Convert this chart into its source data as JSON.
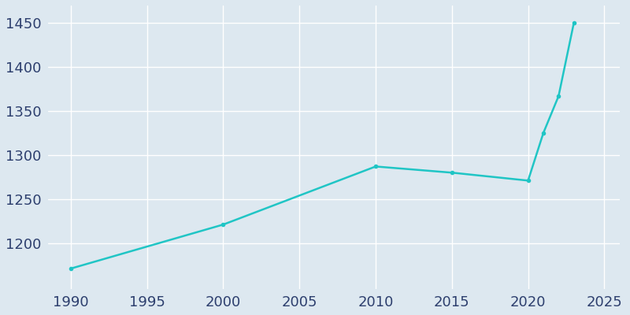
{
  "years": [
    1990,
    2000,
    2010,
    2015,
    2020,
    2021,
    2022,
    2023
  ],
  "population": [
    1171,
    1221,
    1287,
    1280,
    1271,
    1325,
    1367,
    1450
  ],
  "line_color": "#20c5c5",
  "marker": "o",
  "marker_size": 3,
  "line_width": 1.8,
  "fig_bg_color": "#dde8f0",
  "plot_bg_color": "#dde8f0",
  "xlabel": "",
  "ylabel": "",
  "xlim": [
    1988.5,
    2026
  ],
  "ylim": [
    1148,
    1470
  ],
  "xticks": [
    1990,
    1995,
    2000,
    2005,
    2010,
    2015,
    2020,
    2025
  ],
  "yticks": [
    1200,
    1250,
    1300,
    1350,
    1400,
    1450
  ],
  "grid_color": "#ffffff",
  "grid_linewidth": 1.0,
  "tick_color": "#2d3f6e",
  "tick_fontsize": 13,
  "spine_visible": false
}
